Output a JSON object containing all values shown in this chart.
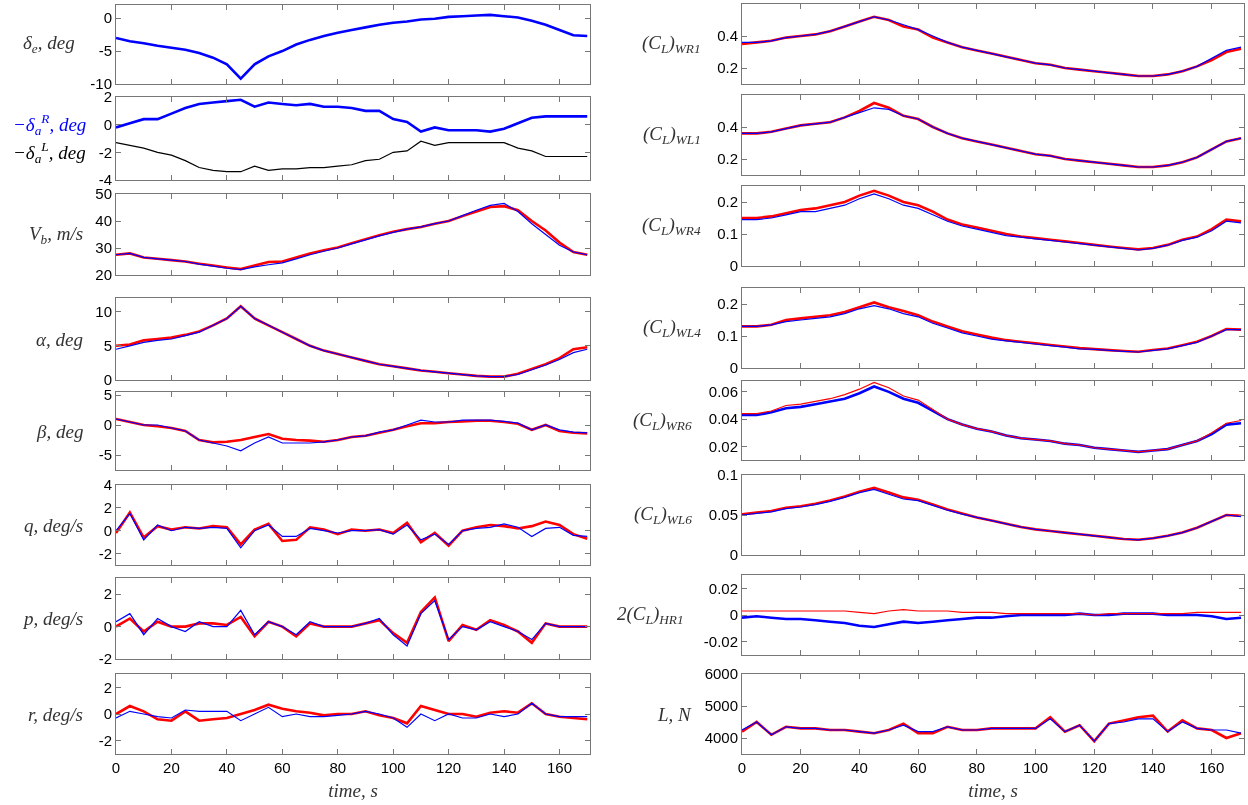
{
  "chart_data": [
    {
      "type": "line",
      "ylabel": "δ$_{e}$, deg",
      "xlim": [
        0,
        171
      ],
      "xticks": [
        0,
        20,
        40,
        60,
        80,
        100,
        120,
        140,
        160
      ],
      "ylim": [
        -10,
        2
      ],
      "yticks": [
        -10,
        -5,
        0
      ],
      "tick_labels": "y",
      "x": [
        0,
        5,
        10,
        15,
        20,
        25,
        30,
        35,
        40,
        45,
        50,
        55,
        60,
        65,
        70,
        75,
        80,
        85,
        90,
        95,
        100,
        105,
        110,
        115,
        120,
        125,
        130,
        135,
        140,
        145,
        150,
        155,
        160,
        165,
        170
      ],
      "series": [
        {
          "color": "#0000ff",
          "values": [
            -3,
            -3.5,
            -3.8,
            -4.2,
            -4.5,
            -4.8,
            -5.3,
            -6,
            -7,
            -9.2,
            -7,
            -5.8,
            -5,
            -4,
            -3.3,
            -2.7,
            -2.2,
            -1.8,
            -1.4,
            -1,
            -0.7,
            -0.5,
            -0.2,
            -0.1,
            0.2,
            0.3,
            0.4,
            0.5,
            0.3,
            0.1,
            -0.4,
            -1,
            -1.8,
            -2.6,
            -2.7
          ]
        }
      ]
    },
    {
      "type": "line",
      "xlim": [
        0,
        171
      ],
      "xticks": [
        0,
        20,
        40,
        60,
        80,
        100,
        120,
        140,
        160
      ],
      "ylim": [
        -4,
        2
      ],
      "yticks": [
        -4,
        -2,
        0,
        2
      ],
      "tick_labels": "y",
      "x": [
        0,
        5,
        10,
        15,
        20,
        25,
        30,
        35,
        40,
        45,
        50,
        55,
        60,
        65,
        70,
        75,
        80,
        85,
        90,
        95,
        100,
        105,
        110,
        115,
        120,
        125,
        130,
        135,
        140,
        145,
        150,
        155,
        160,
        165,
        170
      ],
      "series": [
        {
          "name": "−δ$_{a}$$^{R}$, deg",
          "color": "#0000ff",
          "values": [
            -0.2,
            0.1,
            0.4,
            0.4,
            0.8,
            1.2,
            1.5,
            1.6,
            1.7,
            1.8,
            1.3,
            1.6,
            1.5,
            1.4,
            1.5,
            1.3,
            1.3,
            1.2,
            1.0,
            1.0,
            0.4,
            0.2,
            -0.5,
            -0.2,
            -0.4,
            -0.4,
            -0.4,
            -0.5,
            -0.3,
            0.1,
            0.5,
            0.6,
            0.6,
            0.6,
            0.6
          ]
        },
        {
          "name": "−δ$_{a}$$^{L}$, deg",
          "color": "#000000",
          "values": [
            -1.3,
            -1.5,
            -1.7,
            -2.0,
            -2.2,
            -2.6,
            -3.1,
            -3.3,
            -3.4,
            -3.4,
            -3.0,
            -3.3,
            -3.2,
            -3.2,
            -3.1,
            -3.1,
            -3.0,
            -2.9,
            -2.6,
            -2.5,
            -2.0,
            -1.9,
            -1.2,
            -1.5,
            -1.3,
            -1.3,
            -1.3,
            -1.3,
            -1.3,
            -1.7,
            -1.9,
            -2.3,
            -2.3,
            -2.3,
            -2.3
          ]
        }
      ]
    },
    {
      "type": "line",
      "ylabel": "V$_{b}$, m/s",
      "xlim": [
        0,
        171
      ],
      "xticks": [
        0,
        20,
        40,
        60,
        80,
        100,
        120,
        140,
        160
      ],
      "ylim": [
        20,
        50
      ],
      "yticks": [
        20,
        30,
        40,
        50
      ],
      "tick_labels": "y",
      "x": [
        0,
        5,
        10,
        15,
        20,
        25,
        30,
        35,
        40,
        45,
        50,
        55,
        60,
        65,
        70,
        75,
        80,
        85,
        90,
        95,
        100,
        105,
        110,
        115,
        120,
        125,
        130,
        135,
        140,
        145,
        150,
        155,
        160,
        165,
        170
      ],
      "series": [
        {
          "color": "#ff0000",
          "values": [
            27.5,
            28,
            26.5,
            26,
            25.5,
            25,
            24.2,
            23.5,
            22.8,
            22.2,
            23.5,
            24.8,
            25,
            26.5,
            28,
            29.2,
            30.2,
            31.8,
            33.2,
            34.7,
            36,
            37,
            37.8,
            39,
            40,
            41.8,
            43.5,
            45.2,
            45.5,
            44,
            40,
            36.5,
            32,
            28.5,
            27.5
          ]
        },
        {
          "color": "#0000ff",
          "values": [
            27.5,
            28,
            26.5,
            26,
            25.5,
            25,
            24,
            23.3,
            22.5,
            22,
            23,
            23.8,
            24.5,
            26,
            27.5,
            28.8,
            30,
            31.5,
            33,
            34.5,
            35.8,
            37,
            37.8,
            39,
            40,
            42,
            44,
            45.8,
            46.5,
            43.5,
            39,
            35,
            31,
            28.5,
            27.5
          ]
        }
      ]
    },
    {
      "type": "line",
      "ylabel": "α, deg",
      "xlim": [
        0,
        171
      ],
      "xticks": [
        0,
        20,
        40,
        60,
        80,
        100,
        120,
        140,
        160
      ],
      "ylim": [
        0,
        12
      ],
      "yticks": [
        0,
        5,
        10
      ],
      "tick_labels": "y",
      "x": [
        0,
        5,
        10,
        15,
        20,
        25,
        30,
        35,
        40,
        45,
        50,
        55,
        60,
        65,
        70,
        75,
        80,
        85,
        90,
        95,
        100,
        105,
        110,
        115,
        120,
        125,
        130,
        135,
        140,
        145,
        150,
        155,
        160,
        165,
        170
      ],
      "series": [
        {
          "color": "#ff0000",
          "values": [
            5,
            5.2,
            5.8,
            6,
            6.2,
            6.6,
            7.1,
            8,
            9,
            10.8,
            9,
            8,
            7,
            6,
            5,
            4.3,
            3.8,
            3.3,
            2.8,
            2.3,
            2,
            1.7,
            1.4,
            1.2,
            1,
            0.8,
            0.6,
            0.5,
            0.5,
            0.9,
            1.6,
            2.3,
            3.2,
            4.5,
            4.8
          ]
        },
        {
          "color": "#0000ff",
          "values": [
            4.5,
            5,
            5.5,
            5.8,
            6,
            6.5,
            7,
            8,
            9,
            10.8,
            9,
            8,
            7,
            6,
            5,
            4.3,
            3.8,
            3.3,
            2.8,
            2.3,
            2,
            1.7,
            1.4,
            1.2,
            1.0,
            0.8,
            0.6,
            0.5,
            0.5,
            0.8,
            1.5,
            2.2,
            3,
            4,
            4.5
          ]
        }
      ]
    },
    {
      "type": "line",
      "ylabel": "β, deg",
      "xlim": [
        0,
        171
      ],
      "xticks": [
        0,
        20,
        40,
        60,
        80,
        100,
        120,
        140,
        160
      ],
      "ylim": [
        -7.5,
        5.5
      ],
      "yticks": [
        -5,
        0,
        5
      ],
      "tick_labels": "y",
      "x": [
        0,
        5,
        10,
        15,
        20,
        25,
        30,
        35,
        40,
        45,
        50,
        55,
        60,
        65,
        70,
        75,
        80,
        85,
        90,
        95,
        100,
        105,
        110,
        115,
        120,
        125,
        130,
        135,
        140,
        145,
        150,
        155,
        160,
        165,
        170
      ],
      "series": [
        {
          "color": "#ff0000",
          "values": [
            1,
            0.5,
            0,
            -0.2,
            -0.5,
            -1,
            -2.5,
            -2.9,
            -2.8,
            -2.5,
            -2,
            -1.5,
            -2.3,
            -2.5,
            -2.6,
            -2.8,
            -2.5,
            -2,
            -1.8,
            -1.3,
            -0.8,
            -0.2,
            0.3,
            0.3,
            0.5,
            0.6,
            0.7,
            0.7,
            0.5,
            0.2,
            -0.8,
            0,
            -1,
            -1.3,
            -1.4
          ]
        },
        {
          "color": "#0000ff",
          "values": [
            1,
            0.5,
            0,
            0,
            -0.5,
            -1,
            -2.5,
            -3,
            -3.5,
            -4.3,
            -3,
            -2,
            -3,
            -3,
            -3,
            -2.8,
            -2.5,
            -2,
            -1.8,
            -1.2,
            -0.8,
            0,
            0.8,
            0.5,
            0.5,
            0.8,
            0.8,
            0.8,
            0.6,
            0.3,
            -0.8,
            0,
            -0.8,
            -1.2,
            -1.3
          ]
        }
      ]
    },
    {
      "type": "line",
      "ylabel": "q, deg/s",
      "xlim": [
        0,
        171
      ],
      "xticks": [
        0,
        20,
        40,
        60,
        80,
        100,
        120,
        140,
        160
      ],
      "ylim": [
        -3,
        4
      ],
      "yticks": [
        -2,
        0,
        2,
        4
      ],
      "tick_labels": "y",
      "x": [
        0,
        5,
        10,
        15,
        20,
        25,
        30,
        35,
        40,
        45,
        50,
        55,
        60,
        65,
        70,
        75,
        80,
        85,
        90,
        95,
        100,
        105,
        110,
        115,
        120,
        125,
        130,
        135,
        140,
        145,
        150,
        155,
        160,
        165,
        170
      ],
      "series": [
        {
          "color": "#ff0000",
          "values": [
            -0.2,
            1.6,
            -0.6,
            0.4,
            0.1,
            0.3,
            0.2,
            0.4,
            0.3,
            -1.2,
            0.1,
            0.6,
            -0.9,
            -0.8,
            0.3,
            0.1,
            -0.3,
            0.1,
            0,
            0.1,
            -0.2,
            0.7,
            -1,
            -0.2,
            -1.3,
            0,
            0.3,
            0.5,
            0.4,
            0.2,
            0.4,
            0.8,
            0.5,
            -0.3,
            -0.7
          ]
        },
        {
          "color": "#0000ff",
          "values": [
            0,
            1.5,
            -0.8,
            0.5,
            0,
            0.3,
            0.2,
            0.3,
            0.2,
            -1.5,
            0,
            0.5,
            -0.5,
            -0.5,
            0.2,
            0,
            -0.2,
            0,
            0,
            0.1,
            -0.3,
            0.5,
            -0.8,
            -0.3,
            -1.2,
            0,
            0.2,
            0.3,
            0.6,
            0.3,
            -0.5,
            0.2,
            0.3,
            -0.4,
            -0.5
          ]
        }
      ]
    },
    {
      "type": "line",
      "ylabel": "p, deg/s",
      "xlim": [
        0,
        171
      ],
      "xticks": [
        0,
        20,
        40,
        60,
        80,
        100,
        120,
        140,
        160
      ],
      "ylim": [
        -2,
        3
      ],
      "yticks": [
        -2,
        0,
        2
      ],
      "tick_labels": "y",
      "x": [
        0,
        5,
        10,
        15,
        20,
        25,
        30,
        35,
        40,
        45,
        50,
        55,
        60,
        65,
        70,
        75,
        80,
        85,
        90,
        95,
        100,
        105,
        110,
        115,
        120,
        125,
        130,
        135,
        140,
        145,
        150,
        155,
        160,
        165,
        170
      ],
      "series": [
        {
          "color": "#ff0000",
          "values": [
            0,
            0.5,
            -0.3,
            0.3,
            0,
            0,
            0.2,
            0.2,
            0.1,
            0.6,
            -0.6,
            0.3,
            0,
            -0.6,
            0.2,
            0,
            0,
            0,
            0.2,
            0.4,
            -0.4,
            -1,
            0.9,
            1.8,
            -0.9,
            0.1,
            -0.2,
            0.4,
            0.1,
            -0.3,
            -1,
            0.2,
            0,
            0,
            0
          ]
        },
        {
          "color": "#0000ff",
          "values": [
            0.3,
            0.8,
            -0.5,
            0.5,
            0,
            -0.3,
            0.3,
            0,
            0,
            1,
            -0.5,
            0.3,
            0,
            -0.5,
            0.3,
            0,
            0,
            0,
            0.2,
            0.5,
            -0.5,
            -1.2,
            0.8,
            1.6,
            -0.8,
            0,
            -0.2,
            0.3,
            0,
            -0.3,
            -0.8,
            0.2,
            0,
            0,
            0
          ]
        }
      ]
    },
    {
      "type": "line",
      "ylabel": "r, deg/s",
      "xlabel": "time, s",
      "xlim": [
        0,
        171
      ],
      "xticks": [
        0,
        20,
        40,
        60,
        80,
        100,
        120,
        140,
        160
      ],
      "ylim": [
        -3,
        3
      ],
      "yticks": [
        -2,
        0,
        2
      ],
      "x": [
        0,
        5,
        10,
        15,
        20,
        25,
        30,
        35,
        40,
        45,
        50,
        55,
        60,
        65,
        70,
        75,
        80,
        85,
        90,
        95,
        100,
        105,
        110,
        115,
        120,
        125,
        130,
        135,
        140,
        145,
        150,
        155,
        160,
        165,
        170
      ],
      "series": [
        {
          "color": "#ff0000",
          "values": [
            0,
            0.6,
            0.2,
            -0.4,
            -0.5,
            0.2,
            -0.5,
            -0.4,
            -0.3,
            0,
            0.3,
            0.7,
            0.4,
            0.2,
            0.1,
            -0.1,
            0,
            0,
            0.2,
            -0.1,
            -0.3,
            -0.7,
            0.6,
            0.3,
            0,
            0,
            -0.2,
            0.1,
            0.2,
            0.1,
            0.8,
            0,
            -0.2,
            -0.3,
            -0.4
          ]
        },
        {
          "color": "#0000ff",
          "values": [
            -0.3,
            0.2,
            0,
            -0.2,
            -0.3,
            0.3,
            0.2,
            0.2,
            0.2,
            -0.5,
            0,
            0.5,
            -0.2,
            0,
            -0.2,
            -0.2,
            -0.1,
            0,
            0.2,
            0,
            -0.3,
            -1,
            0,
            -0.5,
            0,
            -0.3,
            -0.3,
            0,
            -0.2,
            0,
            0.8,
            0,
            -0.2,
            -0.2,
            -0.2
          ]
        }
      ]
    },
    {
      "type": "line",
      "ylabel": "(C$_{L}$)$_{WR1}$",
      "xlim": [
        0,
        171
      ],
      "xticks": [
        0,
        20,
        40,
        60,
        80,
        100,
        120,
        140,
        160
      ],
      "ylim": [
        0.1,
        0.6
      ],
      "yticks": [
        0.2,
        0.4
      ],
      "tick_labels": "y",
      "x": [
        0,
        5,
        10,
        15,
        20,
        25,
        30,
        35,
        40,
        45,
        50,
        55,
        60,
        65,
        70,
        75,
        80,
        85,
        90,
        95,
        100,
        105,
        110,
        115,
        120,
        125,
        130,
        135,
        140,
        145,
        150,
        155,
        160,
        165,
        170
      ],
      "series": [
        {
          "color": "#ff0000",
          "values": [
            0.35,
            0.36,
            0.37,
            0.39,
            0.4,
            0.41,
            0.43,
            0.46,
            0.49,
            0.52,
            0.5,
            0.46,
            0.44,
            0.39,
            0.36,
            0.33,
            0.31,
            0.29,
            0.27,
            0.25,
            0.23,
            0.22,
            0.2,
            0.19,
            0.18,
            0.17,
            0.16,
            0.15,
            0.15,
            0.16,
            0.18,
            0.21,
            0.25,
            0.3,
            0.32
          ]
        },
        {
          "color": "#0000ff",
          "values": [
            0.36,
            0.36,
            0.37,
            0.39,
            0.4,
            0.41,
            0.43,
            0.46,
            0.49,
            0.52,
            0.5,
            0.47,
            0.44,
            0.4,
            0.36,
            0.33,
            0.31,
            0.29,
            0.27,
            0.25,
            0.23,
            0.22,
            0.2,
            0.19,
            0.18,
            0.17,
            0.16,
            0.15,
            0.15,
            0.16,
            0.18,
            0.21,
            0.26,
            0.31,
            0.33
          ]
        }
      ]
    },
    {
      "type": "line",
      "ylabel": "(C$_{L}$)$_{WL1}$",
      "xlim": [
        0,
        171
      ],
      "xticks": [
        0,
        20,
        40,
        60,
        80,
        100,
        120,
        140,
        160
      ],
      "ylim": [
        0.1,
        0.6
      ],
      "yticks": [
        0.2,
        0.4
      ],
      "tick_labels": "y",
      "x": [
        0,
        5,
        10,
        15,
        20,
        25,
        30,
        35,
        40,
        45,
        50,
        55,
        60,
        65,
        70,
        75,
        80,
        85,
        90,
        95,
        100,
        105,
        110,
        115,
        120,
        125,
        130,
        135,
        140,
        145,
        150,
        155,
        160,
        165,
        170
      ],
      "series": [
        {
          "color": "#ff0000",
          "values": [
            0.36,
            0.36,
            0.37,
            0.39,
            0.41,
            0.42,
            0.43,
            0.46,
            0.5,
            0.55,
            0.52,
            0.47,
            0.45,
            0.4,
            0.36,
            0.33,
            0.31,
            0.29,
            0.27,
            0.25,
            0.23,
            0.22,
            0.2,
            0.19,
            0.18,
            0.17,
            0.16,
            0.15,
            0.15,
            0.16,
            0.18,
            0.21,
            0.26,
            0.31,
            0.33
          ]
        },
        {
          "color": "#0000ff",
          "values": [
            0.36,
            0.36,
            0.37,
            0.39,
            0.41,
            0.42,
            0.43,
            0.46,
            0.49,
            0.52,
            0.51,
            0.47,
            0.45,
            0.4,
            0.36,
            0.33,
            0.31,
            0.29,
            0.27,
            0.25,
            0.23,
            0.22,
            0.2,
            0.19,
            0.18,
            0.17,
            0.16,
            0.15,
            0.15,
            0.16,
            0.18,
            0.21,
            0.26,
            0.31,
            0.33
          ]
        }
      ]
    },
    {
      "type": "line",
      "ylabel": "(C$_{L}$)$_{WR4}$",
      "xlim": [
        0,
        171
      ],
      "xticks": [
        0,
        20,
        40,
        60,
        80,
        100,
        120,
        140,
        160
      ],
      "ylim": [
        0,
        0.25
      ],
      "yticks": [
        0,
        0.1,
        0.2
      ],
      "tick_labels": "y",
      "x": [
        0,
        5,
        10,
        15,
        20,
        25,
        30,
        35,
        40,
        45,
        50,
        55,
        60,
        65,
        70,
        75,
        80,
        85,
        90,
        95,
        100,
        105,
        110,
        115,
        120,
        125,
        130,
        135,
        140,
        145,
        150,
        155,
        160,
        165,
        170
      ],
      "series": [
        {
          "color": "#ff0000",
          "values": [
            0.15,
            0.15,
            0.155,
            0.165,
            0.175,
            0.18,
            0.19,
            0.2,
            0.22,
            0.235,
            0.22,
            0.2,
            0.19,
            0.17,
            0.145,
            0.13,
            0.12,
            0.11,
            0.1,
            0.092,
            0.087,
            0.082,
            0.077,
            0.072,
            0.066,
            0.061,
            0.056,
            0.052,
            0.056,
            0.066,
            0.082,
            0.092,
            0.115,
            0.145,
            0.14
          ]
        },
        {
          "color": "#0000ff",
          "values": [
            0.145,
            0.145,
            0.15,
            0.16,
            0.17,
            0.17,
            0.18,
            0.19,
            0.21,
            0.225,
            0.21,
            0.19,
            0.18,
            0.16,
            0.14,
            0.125,
            0.115,
            0.105,
            0.095,
            0.09,
            0.085,
            0.08,
            0.075,
            0.07,
            0.065,
            0.06,
            0.055,
            0.05,
            0.055,
            0.065,
            0.08,
            0.09,
            0.11,
            0.14,
            0.135
          ]
        }
      ]
    },
    {
      "type": "line",
      "ylabel": "(C$_{L}$)$_{WL4}$",
      "xlim": [
        0,
        171
      ],
      "xticks": [
        0,
        20,
        40,
        60,
        80,
        100,
        120,
        140,
        160
      ],
      "ylim": [
        0,
        0.25
      ],
      "yticks": [
        0,
        0.1,
        0.2
      ],
      "tick_labels": "y",
      "x": [
        0,
        5,
        10,
        15,
        20,
        25,
        30,
        35,
        40,
        45,
        50,
        55,
        60,
        65,
        70,
        75,
        80,
        85,
        90,
        95,
        100,
        105,
        110,
        115,
        120,
        125,
        130,
        135,
        140,
        145,
        150,
        155,
        160,
        165,
        170
      ],
      "series": [
        {
          "color": "#ff0000",
          "values": [
            0.13,
            0.13,
            0.135,
            0.15,
            0.155,
            0.16,
            0.165,
            0.175,
            0.19,
            0.205,
            0.19,
            0.178,
            0.165,
            0.145,
            0.13,
            0.115,
            0.105,
            0.095,
            0.087,
            0.082,
            0.077,
            0.072,
            0.067,
            0.062,
            0.059,
            0.056,
            0.053,
            0.051,
            0.056,
            0.061,
            0.071,
            0.082,
            0.1,
            0.122,
            0.12
          ]
        },
        {
          "color": "#0000ff",
          "values": [
            0.13,
            0.13,
            0.135,
            0.145,
            0.15,
            0.155,
            0.16,
            0.17,
            0.185,
            0.195,
            0.185,
            0.17,
            0.16,
            0.14,
            0.125,
            0.11,
            0.1,
            0.09,
            0.085,
            0.08,
            0.075,
            0.07,
            0.065,
            0.06,
            0.058,
            0.055,
            0.052,
            0.05,
            0.055,
            0.06,
            0.07,
            0.08,
            0.1,
            0.12,
            0.12
          ]
        }
      ]
    },
    {
      "type": "line",
      "ylabel": "(C$_{L}$)$_{WR6}$",
      "xlim": [
        0,
        171
      ],
      "xticks": [
        0,
        20,
        40,
        60,
        80,
        100,
        120,
        140,
        160
      ],
      "ylim": [
        0.01,
        0.068
      ],
      "yticks": [
        0.02,
        0.04,
        0.06
      ],
      "tick_labels": "y",
      "x": [
        0,
        5,
        10,
        15,
        20,
        25,
        30,
        35,
        40,
        45,
        50,
        55,
        60,
        65,
        70,
        75,
        80,
        85,
        90,
        95,
        100,
        105,
        110,
        115,
        120,
        125,
        130,
        135,
        140,
        145,
        150,
        155,
        160,
        165,
        170
      ],
      "series": [
        {
          "color": "#0000ff",
          "values": [
            0.043,
            0.043,
            0.045,
            0.048,
            0.049,
            0.051,
            0.053,
            0.055,
            0.059,
            0.064,
            0.06,
            0.055,
            0.052,
            0.046,
            0.04,
            0.036,
            0.033,
            0.031,
            0.028,
            0.026,
            0.025,
            0.024,
            0.022,
            0.021,
            0.019,
            0.018,
            0.017,
            0.016,
            0.017,
            0.018,
            0.021,
            0.024,
            0.029,
            0.036,
            0.037
          ]
        },
        {
          "color": "#ff0000",
          "values": [
            0.044,
            0.044,
            0.046,
            0.05,
            0.051,
            0.053,
            0.055,
            0.058,
            0.062,
            0.067,
            0.063,
            0.057,
            0.054,
            0.047,
            0.04,
            0.036,
            0.033,
            0.031,
            0.028,
            0.026,
            0.025,
            0.024,
            0.022,
            0.021,
            0.019,
            0.018,
            0.017,
            0.016,
            0.017,
            0.018,
            0.021,
            0.024,
            0.03,
            0.037,
            0.039
          ]
        }
      ]
    },
    {
      "type": "line",
      "ylabel": "(C$_{L}$)$_{WL6}$",
      "xlim": [
        0,
        171
      ],
      "xticks": [
        0,
        20,
        40,
        60,
        80,
        100,
        120,
        140,
        160
      ],
      "ylim": [
        0,
        0.1
      ],
      "yticks": [
        0,
        0.05,
        0.1
      ],
      "tick_labels": "y",
      "x": [
        0,
        5,
        10,
        15,
        20,
        25,
        30,
        35,
        40,
        45,
        50,
        55,
        60,
        65,
        70,
        75,
        80,
        85,
        90,
        95,
        100,
        105,
        110,
        115,
        120,
        125,
        130,
        135,
        140,
        145,
        150,
        155,
        160,
        165,
        170
      ],
      "series": [
        {
          "color": "#ff0000",
          "values": [
            0.051,
            0.053,
            0.055,
            0.059,
            0.061,
            0.064,
            0.068,
            0.073,
            0.079,
            0.084,
            0.078,
            0.072,
            0.069,
            0.063,
            0.057,
            0.052,
            0.047,
            0.043,
            0.039,
            0.035,
            0.032,
            0.03,
            0.028,
            0.026,
            0.024,
            0.022,
            0.02,
            0.019,
            0.021,
            0.024,
            0.028,
            0.034,
            0.042,
            0.05,
            0.049
          ]
        },
        {
          "color": "#0000ff",
          "values": [
            0.05,
            0.052,
            0.054,
            0.058,
            0.06,
            0.063,
            0.067,
            0.072,
            0.078,
            0.082,
            0.076,
            0.07,
            0.068,
            0.062,
            0.056,
            0.051,
            0.047,
            0.043,
            0.039,
            0.035,
            0.032,
            0.03,
            0.028,
            0.026,
            0.024,
            0.022,
            0.02,
            0.019,
            0.021,
            0.024,
            0.028,
            0.034,
            0.042,
            0.05,
            0.048
          ]
        }
      ]
    },
    {
      "type": "line",
      "ylabel": "2(C$_{L}$)$_{HR1}$",
      "xlim": [
        0,
        171
      ],
      "xticks": [
        0,
        20,
        40,
        60,
        80,
        100,
        120,
        140,
        160
      ],
      "ylim": [
        -0.03,
        0.03
      ],
      "yticks": [
        -0.02,
        0,
        0.02
      ],
      "tick_labels": "y",
      "x": [
        0,
        5,
        10,
        15,
        20,
        25,
        30,
        35,
        40,
        45,
        50,
        55,
        60,
        65,
        70,
        75,
        80,
        85,
        90,
        95,
        100,
        105,
        110,
        115,
        120,
        125,
        130,
        135,
        140,
        145,
        150,
        155,
        160,
        165,
        170
      ],
      "series": [
        {
          "color": "#0000ff",
          "values": [
            -0.002,
            -0.001,
            -0.002,
            -0.003,
            -0.003,
            -0.004,
            -0.005,
            -0.006,
            -0.008,
            -0.009,
            -0.007,
            -0.005,
            -0.006,
            -0.005,
            -0.004,
            -0.003,
            -0.002,
            -0.002,
            -0.001,
            0,
            0,
            0,
            0,
            0.001,
            0,
            0,
            0.001,
            0.001,
            0.001,
            0,
            0,
            0,
            -0.001,
            -0.003,
            -0.002
          ]
        },
        {
          "color": "#ff0000",
          "values": [
            0.003,
            0.003,
            0.003,
            0.003,
            0.003,
            0.003,
            0.003,
            0.003,
            0.002,
            0.001,
            0.003,
            0.004,
            0.003,
            0.003,
            0.003,
            0.002,
            0.002,
            0.002,
            0.001,
            0.001,
            0.001,
            0.001,
            0.001,
            0.001,
            0,
            0.001,
            0.001,
            0.001,
            0.001,
            0.001,
            0.001,
            0.002,
            0.002,
            0.002,
            0.002
          ]
        }
      ]
    },
    {
      "type": "line",
      "ylabel": "L, N",
      "xlabel": "time, s",
      "xlim": [
        0,
        171
      ],
      "xticks": [
        0,
        20,
        40,
        60,
        80,
        100,
        120,
        140,
        160
      ],
      "ylim": [
        3500,
        6000
      ],
      "yticks": [
        4000,
        5000,
        6000
      ],
      "x": [
        0,
        5,
        10,
        15,
        20,
        25,
        30,
        35,
        40,
        45,
        50,
        55,
        60,
        65,
        70,
        75,
        80,
        85,
        90,
        95,
        100,
        105,
        110,
        115,
        120,
        125,
        130,
        135,
        140,
        145,
        150,
        155,
        160,
        165,
        170
      ],
      "series": [
        {
          "color": "#ff0000",
          "values": [
            4200,
            4500,
            4100,
            4350,
            4300,
            4300,
            4250,
            4250,
            4200,
            4150,
            4250,
            4450,
            4150,
            4150,
            4350,
            4250,
            4250,
            4300,
            4300,
            4300,
            4300,
            4650,
            4200,
            4400,
            3900,
            4450,
            4550,
            4650,
            4700,
            4200,
            4550,
            4300,
            4250,
            4000,
            4150
          ]
        },
        {
          "color": "#0000ff",
          "values": [
            4250,
            4500,
            4100,
            4350,
            4300,
            4300,
            4250,
            4250,
            4200,
            4150,
            4250,
            4400,
            4200,
            4200,
            4350,
            4250,
            4250,
            4300,
            4300,
            4300,
            4300,
            4600,
            4200,
            4400,
            3900,
            4450,
            4500,
            4600,
            4600,
            4200,
            4500,
            4300,
            4250,
            4250,
            4150
          ]
        }
      ]
    }
  ]
}
